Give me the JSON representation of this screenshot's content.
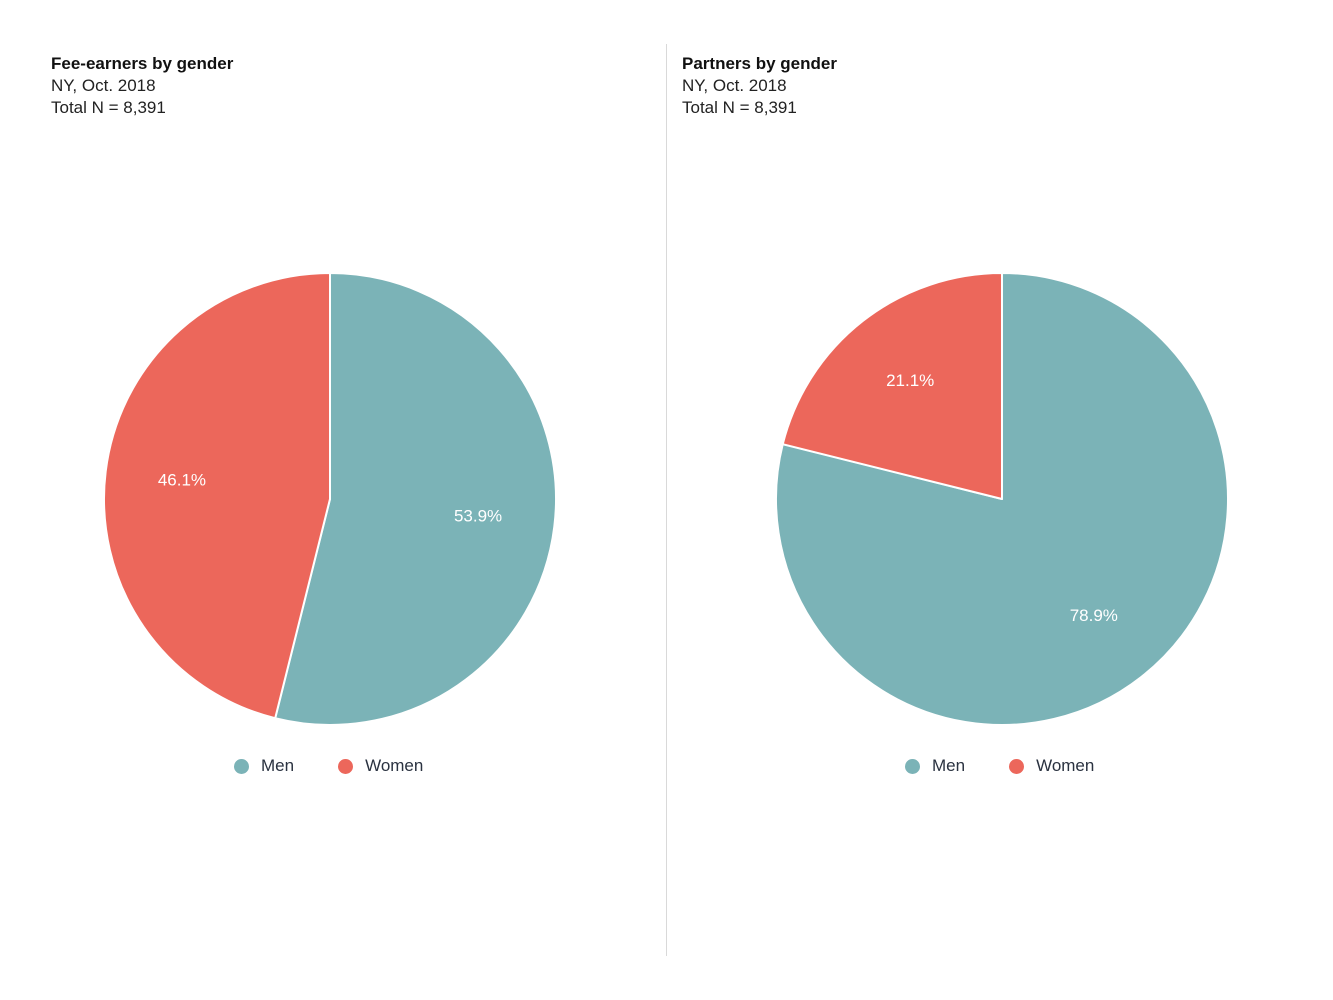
{
  "chart_data": [
    {
      "type": "pie",
      "title": "Fee-earners by gender",
      "subtitle": "NY, Oct. 2018",
      "total": "Total N = 8,391",
      "slices": [
        {
          "label": "Men",
          "value": 53.9,
          "display": "53.9%",
          "color": "#7bb3b7"
        },
        {
          "label": "Women",
          "value": 46.1,
          "display": "46.1%",
          "color": "#ec675b"
        }
      ],
      "legend": [
        "Men",
        "Women"
      ],
      "legend_placement": "bottom"
    },
    {
      "type": "pie",
      "title": "Partners by gender",
      "subtitle": "NY, Oct. 2018",
      "total": "Total N = 8,391",
      "slices": [
        {
          "label": "Men",
          "value": 78.9,
          "display": "78.9%",
          "color": "#7bb3b7"
        },
        {
          "label": "Women",
          "value": 21.1,
          "display": "21.1%",
          "color": "#ec675b"
        }
      ],
      "legend": [
        "Men",
        "Women"
      ],
      "legend_placement": "bottom"
    }
  ]
}
